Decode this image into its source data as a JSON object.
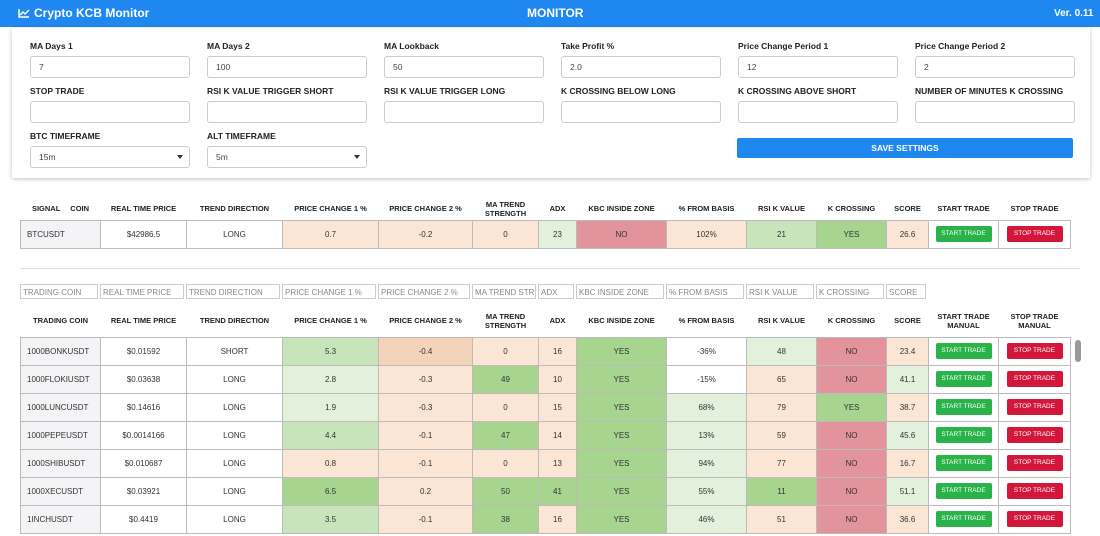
{
  "header": {
    "title": "Crypto KCB Monitor",
    "page": "MONITOR",
    "version": "Ver. 0.11"
  },
  "settings": {
    "fields": [
      {
        "label": "MA Days 1",
        "value": "7"
      },
      {
        "label": "MA Days 2",
        "value": "100"
      },
      {
        "label": "MA Lookback",
        "value": "50"
      },
      {
        "label": "Take Profit %",
        "value": "2.0"
      },
      {
        "label": "Price Change Period 1",
        "value": "12"
      },
      {
        "label": "Price Change Period 2",
        "value": "2"
      },
      {
        "label": "STOP TRADE"
      },
      {
        "label": "RSI K VALUE TRIGGER SHORT"
      },
      {
        "label": "RSI K VALUE TRIGGER LONG"
      },
      {
        "label": "K CROSSING BELOW LONG"
      },
      {
        "label": "K CROSSING ABOVE SHORT"
      },
      {
        "label": "NUMBER OF MINUTES K CROSSING"
      },
      {
        "label": "BTC TIMEFRAME",
        "value": "15m",
        "type": "select"
      },
      {
        "label": "ALT TIMEFRAME",
        "value": "5m",
        "type": "select"
      }
    ],
    "save_button": "SAVE SETTINGS"
  },
  "buttons": {
    "start": "START TRADE",
    "stop": "STOP TRADE"
  },
  "btc_table": {
    "signal_label": "SIGNAL",
    "columns": [
      "COIN",
      "REAL TIME PRICE",
      "TREND DIRECTION",
      "PRICE CHANGE 1 %",
      "PRICE CHANGE 2 %",
      "MA TREND STRENGTH",
      "ADX",
      "KBC INSIDE ZONE",
      "% FROM BASIS",
      "RSI K VALUE",
      "K CROSSING",
      "SCORE",
      "START TRADE",
      "STOP TRADE"
    ],
    "row": {
      "cells": [
        "BTCUSDT",
        "$42986.5",
        "LONG",
        "0.7",
        "-0.2",
        "0",
        "23",
        "NO",
        "102%",
        "21",
        "YES",
        "26.6"
      ],
      "colors": [
        "#f4f4f6",
        "#ffffff",
        "#ffffff",
        "#fbe6d6",
        "#fbe6d6",
        "#fbe6d6",
        "#e2f0dc",
        "#e3939c",
        "#fbe6d6",
        "#c7e4bb",
        "#a7d48f",
        "#fbe6d6"
      ]
    }
  },
  "filters": [
    "TRADING COIN",
    "REAL TIME PRICE",
    "TREND DIRECTION",
    "PRICE CHANGE 1 %",
    "PRICE CHANGE 2 %",
    "MA TREND STREN",
    "ADX",
    "KBC INSIDE ZONE",
    "% FROM BASIS",
    "RSI K VALUE",
    "K CROSSING",
    "SCORE"
  ],
  "coin_table": {
    "columns": [
      "TRADING COIN",
      "REAL TIME PRICE",
      "TREND DIRECTION",
      "PRICE CHANGE 1 %",
      "PRICE CHANGE 2 %",
      "MA TREND STRENGTH",
      "ADX",
      "KBC INSIDE ZONE",
      "% FROM BASIS",
      "RSI K VALUE",
      "K CROSSING",
      "SCORE",
      "START TRADE MANUAL",
      "STOP TRADE MANUAL"
    ],
    "rows": [
      {
        "cells": [
          "1000BONKUSDT",
          "$0.01592",
          "SHORT",
          "5.3",
          "-0.4",
          "0",
          "16",
          "YES",
          "-36%",
          "48",
          "NO",
          "23.4"
        ],
        "colors": [
          "#f4f4f6",
          "#ffffff",
          "#ffffff",
          "#c7e4bb",
          "#f5d3bb",
          "#fbe6d6",
          "#fbe6d6",
          "#a7d48f",
          "#ffffff",
          "#e2f0dc",
          "#e3939c",
          "#fbe6d6"
        ]
      },
      {
        "cells": [
          "1000FLOKIUSDT",
          "$0.03638",
          "LONG",
          "2.8",
          "-0.3",
          "49",
          "10",
          "YES",
          "-15%",
          "65",
          "NO",
          "41.1"
        ],
        "colors": [
          "#f4f4f6",
          "#ffffff",
          "#ffffff",
          "#e2f0dc",
          "#fbe6d6",
          "#a7d48f",
          "#fbe6d6",
          "#a7d48f",
          "#ffffff",
          "#fbe6d6",
          "#e3939c",
          "#e2f0dc"
        ]
      },
      {
        "cells": [
          "1000LUNCUSDT",
          "$0.14616",
          "LONG",
          "1.9",
          "-0.3",
          "0",
          "15",
          "YES",
          "68%",
          "79",
          "YES",
          "38.7"
        ],
        "colors": [
          "#f4f4f6",
          "#ffffff",
          "#ffffff",
          "#e2f0dc",
          "#fbe6d6",
          "#fbe6d6",
          "#fbe6d6",
          "#a7d48f",
          "#e2f0dc",
          "#fbe6d6",
          "#a7d48f",
          "#fbe6d6"
        ]
      },
      {
        "cells": [
          "1000PEPEUSDT",
          "$0.0014166",
          "LONG",
          "4.4",
          "-0.1",
          "47",
          "14",
          "YES",
          "13%",
          "59",
          "NO",
          "45.6"
        ],
        "colors": [
          "#f4f4f6",
          "#ffffff",
          "#ffffff",
          "#c7e4bb",
          "#fbe6d6",
          "#a7d48f",
          "#fbe6d6",
          "#a7d48f",
          "#e2f0dc",
          "#fbe6d6",
          "#e3939c",
          "#e2f0dc"
        ]
      },
      {
        "cells": [
          "1000SHIBUSDT",
          "$0.010687",
          "LONG",
          "0.8",
          "-0.1",
          "0",
          "13",
          "YES",
          "94%",
          "77",
          "NO",
          "16.7"
        ],
        "colors": [
          "#f4f4f6",
          "#ffffff",
          "#ffffff",
          "#fbe6d6",
          "#fbe6d6",
          "#fbe6d6",
          "#fbe6d6",
          "#a7d48f",
          "#e2f0dc",
          "#fbe6d6",
          "#e3939c",
          "#fbe6d6"
        ]
      },
      {
        "cells": [
          "1000XECUSDT",
          "$0.03921",
          "LONG",
          "6.5",
          "0.2",
          "50",
          "41",
          "YES",
          "55%",
          "11",
          "NO",
          "51.1"
        ],
        "colors": [
          "#f4f4f6",
          "#ffffff",
          "#ffffff",
          "#a7d48f",
          "#fbe6d6",
          "#a7d48f",
          "#a7d48f",
          "#a7d48f",
          "#e2f0dc",
          "#a7d48f",
          "#e3939c",
          "#e2f0dc"
        ]
      },
      {
        "cells": [
          "1INCHUSDT",
          "$0.4419",
          "LONG",
          "3.5",
          "-0.1",
          "38",
          "16",
          "YES",
          "46%",
          "51",
          "NO",
          "36.6"
        ],
        "colors": [
          "#f4f4f6",
          "#ffffff",
          "#ffffff",
          "#c7e4bb",
          "#fbe6d6",
          "#a7d48f",
          "#fbe6d6",
          "#a7d48f",
          "#e2f0dc",
          "#fbe6d6",
          "#e3939c",
          "#fbe6d6"
        ]
      }
    ]
  }
}
